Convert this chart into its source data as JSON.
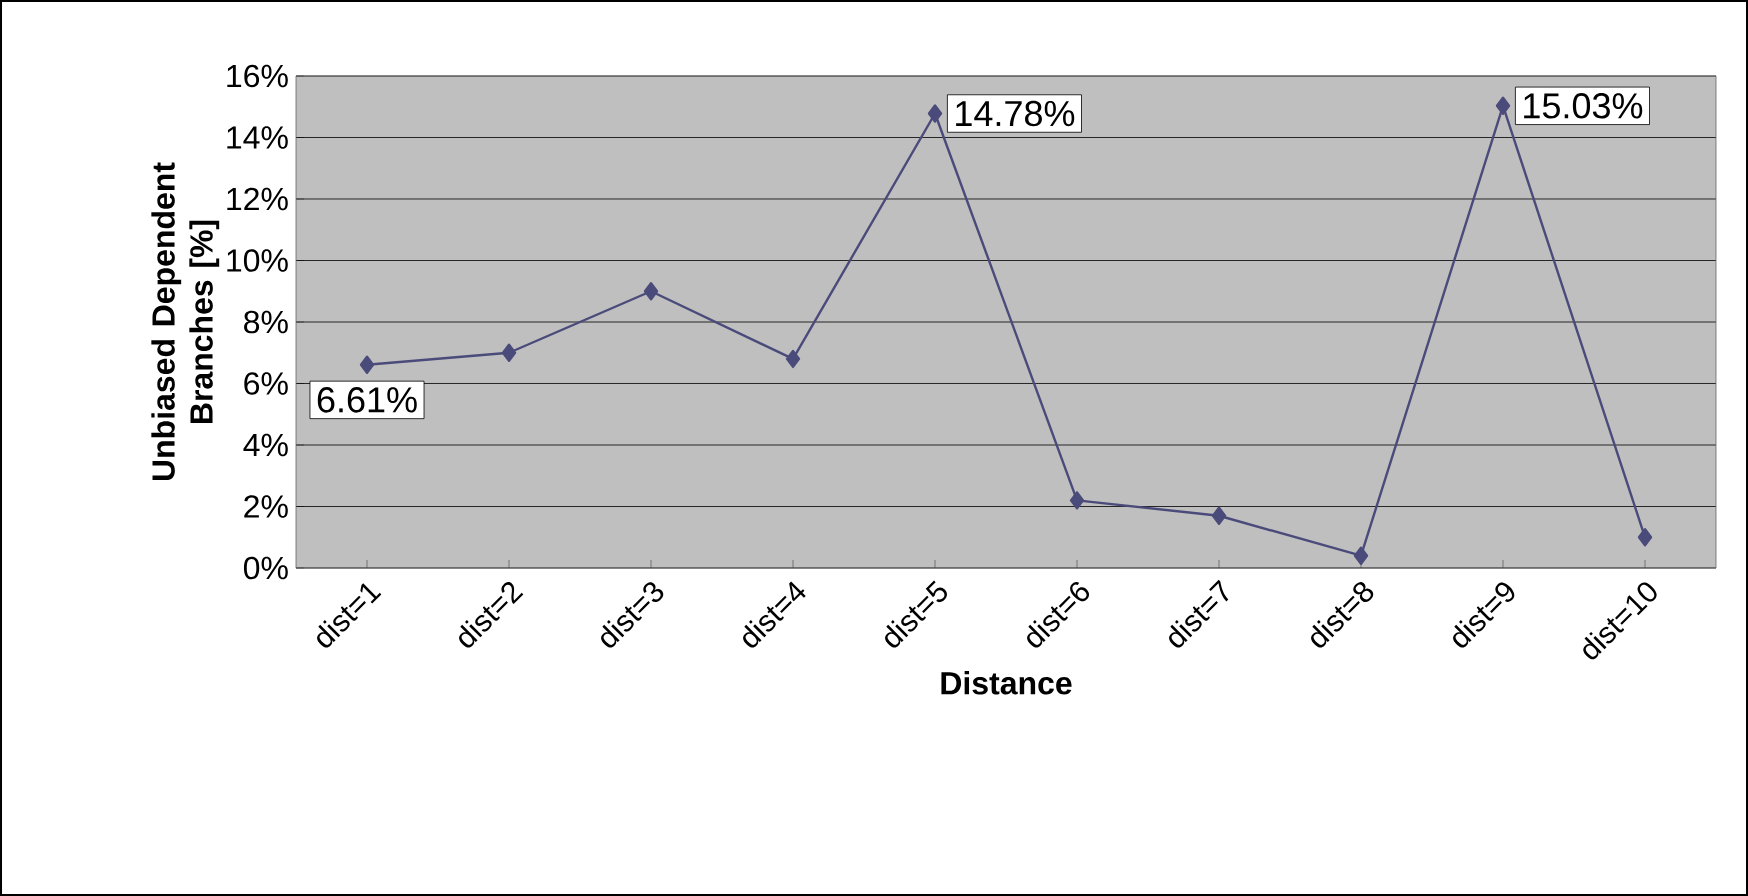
{
  "chart_data": {
    "type": "line",
    "xlabel": "Distance",
    "ylabel": "Unbiased Dependent Branches [%]",
    "categories": [
      "dist=1",
      "dist=2",
      "dist=3",
      "dist=4",
      "dist=5",
      "dist=6",
      "dist=7",
      "dist=8",
      "dist=9",
      "dist=10"
    ],
    "series": [
      {
        "color": "#4b4b7b",
        "values": [
          6.61,
          7.0,
          9.0,
          6.8,
          14.78,
          2.2,
          1.7,
          0.4,
          15.03,
          1.0
        ],
        "value_labels": [
          "6.61%",
          null,
          null,
          null,
          "14.78%",
          null,
          null,
          null,
          "15.03%",
          null
        ]
      }
    ],
    "ylim": [
      0,
      16
    ],
    "yticks": [
      {
        "value": 0,
        "label": "0%"
      },
      {
        "value": 2,
        "label": "2%"
      },
      {
        "value": 4,
        "label": "4%"
      },
      {
        "value": 6,
        "label": "6%"
      },
      {
        "value": 8,
        "label": "8%"
      },
      {
        "value": 10,
        "label": "10%"
      },
      {
        "value": 12,
        "label": "12%"
      },
      {
        "value": 14,
        "label": "14%"
      },
      {
        "value": 16,
        "label": "16%"
      }
    ],
    "grid": "y",
    "marker": "diamond",
    "line_style": "solid"
  }
}
